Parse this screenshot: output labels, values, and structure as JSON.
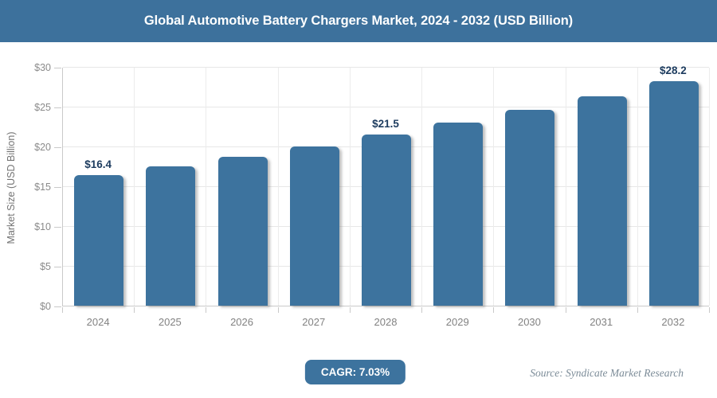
{
  "header": {
    "title": "Global Automotive Battery Chargers Market, 2024 - 2032 (USD Billion)"
  },
  "chart_data": {
    "type": "bar",
    "title": "Global Automotive Battery Chargers Market, 2024 - 2032 (USD Billion)",
    "categories": [
      "2024",
      "2025",
      "2026",
      "2027",
      "2028",
      "2029",
      "2030",
      "2031",
      "2032"
    ],
    "values": [
      16.4,
      17.5,
      18.7,
      20.0,
      21.5,
      23.0,
      24.6,
      26.3,
      28.2
    ],
    "data_labels": [
      {
        "index": 0,
        "text": "$16.4"
      },
      {
        "index": 4,
        "text": "$21.5"
      },
      {
        "index": 8,
        "text": "$28.2"
      }
    ],
    "xlabel": "",
    "ylabel": "Market Size (USD Billion)",
    "ylim": [
      0,
      30
    ],
    "ytick_step": 5,
    "ytick_labels": [
      "$0",
      "$5",
      "$10",
      "$15",
      "$20",
      "$25",
      "$30"
    ],
    "grid": true,
    "legend_position": "none",
    "bar_color": "#3d739e",
    "value_label_color": "#1c3b5e"
  },
  "footer": {
    "cagr_badge": "CAGR: 7.03%",
    "source": "Source: Syndicate Market Research"
  },
  "colors": {
    "title_bar_bg": "#3d719c",
    "title_text": "#ffffff",
    "bar_fill": "#3d739e",
    "grid_line": "#e7e7e7",
    "axis_line": "#c9c9c9",
    "tick_text": "#8b8b8b",
    "source_text": "#7c8c98",
    "badge_bg": "#3d739e",
    "badge_text": "#ffffff"
  }
}
